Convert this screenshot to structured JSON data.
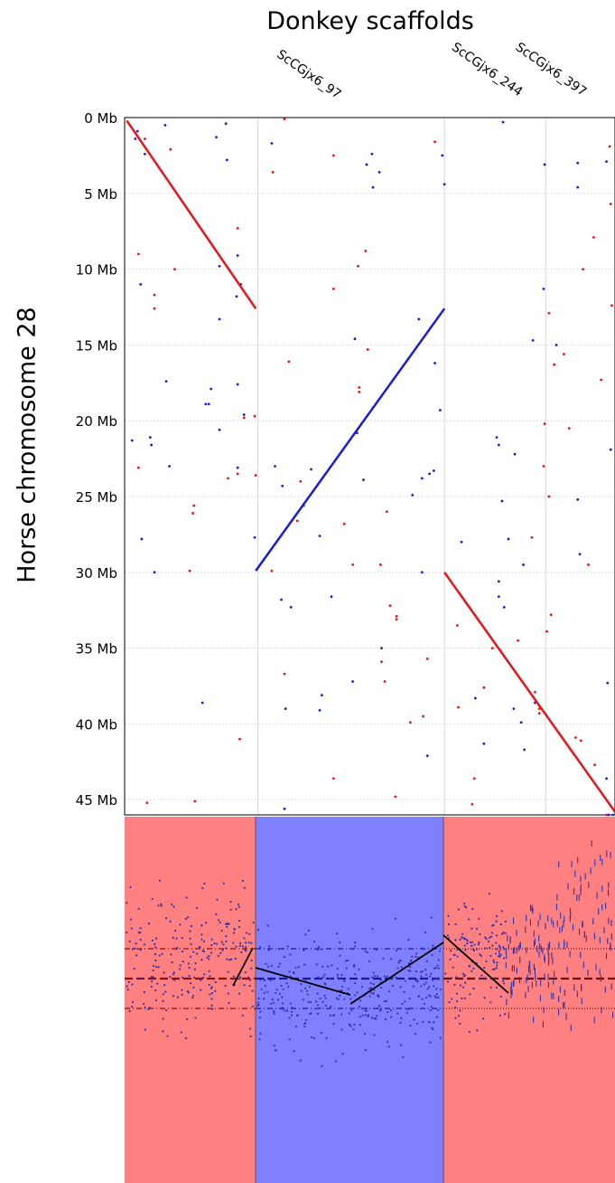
{
  "chart_data": [
    {
      "type": "scatter",
      "title": "Donkey scaffolds",
      "ylabel": "Horse chromosome 28",
      "y_unit": "Mb",
      "ylim": [
        0,
        46
      ],
      "y_ticks": [
        "0 Mb",
        "5 Mb",
        "10 Mb",
        "15 Mb",
        "20 Mb",
        "25 Mb",
        "30 Mb",
        "35 Mb",
        "40 Mb",
        "45 Mb"
      ],
      "y_tick_values": [
        0,
        5,
        10,
        15,
        20,
        25,
        30,
        35,
        40,
        45
      ],
      "grid": true,
      "x_unit": "Mb",
      "xlim": [
        0,
        46
      ],
      "scaffolds": [
        {
          "name": "ScCGjx6_97",
          "start": 0,
          "end": 12.5,
          "orientation": "forward",
          "color": "#e8141c"
        },
        {
          "name": "ScCGjx6_244",
          "start": 12.5,
          "end": 30,
          "orientation": "reverse",
          "color": "#1a1adb"
        },
        {
          "name": "ScCGjx6_397",
          "start": 30,
          "end": 46,
          "orientation": "forward",
          "color": "#e8141c"
        }
      ],
      "series": [
        {
          "values": [
            [
              0.2,
              0.2
            ],
            [
              12.3,
              12.6
            ]
          ],
          "color": "#e8141c"
        },
        {
          "values": [
            [
              12.3,
              29.9
            ],
            [
              30.0,
              12.6
            ]
          ],
          "color": "#1a1adb"
        },
        {
          "values": [
            [
              30.0,
              30.0
            ],
            [
              46.0,
              45.8
            ]
          ],
          "color": "#e8141c"
        }
      ],
      "scatter_points": {
        "red": [
          [
            1.9,
            1.4
          ],
          [
            4.3,
            2.1
          ],
          [
            13.9,
            3.6
          ],
          [
            15.0,
            0.1
          ],
          [
            19.6,
            2.5
          ],
          [
            29.1,
            1.6
          ],
          [
            39.8,
            12.9
          ],
          [
            40.3,
            16.3
          ],
          [
            41.2,
            15.6
          ],
          [
            39.4,
            20.2
          ],
          [
            41.7,
            20.5
          ],
          [
            44.7,
            17.3
          ],
          [
            39.3,
            23.0
          ],
          [
            39.8,
            25.0
          ],
          [
            38.2,
            27.7
          ],
          [
            43.5,
            29.5
          ],
          [
            45.5,
            1.9
          ],
          [
            45.6,
            5.7
          ],
          [
            44.0,
            7.9
          ],
          [
            43.0,
            10.0
          ],
          [
            45.7,
            12.4
          ],
          [
            1.3,
            9.0
          ],
          [
            4.7,
            10.0
          ],
          [
            10.6,
            7.3
          ],
          [
            2.8,
            11.7
          ],
          [
            2.8,
            12.6
          ],
          [
            19.6,
            11.3
          ],
          [
            21.9,
            9.8
          ],
          [
            22.6,
            8.8
          ],
          [
            15.4,
            16.1
          ],
          [
            22.8,
            15.3
          ],
          [
            22.0,
            17.8
          ],
          [
            22.0,
            18.1
          ],
          [
            11.2,
            19.8
          ],
          [
            12.2,
            19.7
          ],
          [
            1.3,
            23.1
          ],
          [
            9.7,
            23.8
          ],
          [
            10.6,
            23.5
          ],
          [
            12.3,
            23.6
          ],
          [
            16.5,
            24.0
          ],
          [
            16.8,
            25.6
          ],
          [
            6.4,
            26.1
          ],
          [
            6.5,
            25.6
          ],
          [
            16.2,
            26.6
          ],
          [
            20.6,
            26.8
          ],
          [
            24.6,
            26.0
          ],
          [
            21.4,
            29.5
          ],
          [
            24.0,
            29.5
          ],
          [
            6.1,
            29.9
          ],
          [
            13.8,
            29.9
          ],
          [
            24.9,
            32.2
          ],
          [
            25.5,
            32.9
          ],
          [
            25.5,
            33.1
          ],
          [
            31.2,
            33.5
          ],
          [
            34.5,
            35.0
          ],
          [
            36.9,
            34.5
          ],
          [
            40.0,
            32.8
          ],
          [
            39.6,
            33.9
          ],
          [
            24.1,
            35.9
          ],
          [
            28.4,
            35.7
          ],
          [
            33.7,
            37.6
          ],
          [
            38.5,
            37.9
          ],
          [
            38.9,
            39.3
          ],
          [
            38.9,
            39.0
          ],
          [
            24.4,
            37.2
          ],
          [
            15.0,
            36.7
          ],
          [
            26.8,
            39.9
          ],
          [
            28.0,
            39.5
          ],
          [
            31.3,
            38.9
          ],
          [
            10.8,
            41.0
          ],
          [
            19.6,
            43.6
          ],
          [
            25.4,
            44.8
          ],
          [
            32.8,
            43.6
          ],
          [
            32.6,
            45.3
          ],
          [
            2.1,
            45.2
          ],
          [
            6.6,
            45.1
          ],
          [
            42.8,
            41.1
          ],
          [
            44.1,
            42.7
          ],
          [
            42.3,
            40.9
          ],
          [
            45.2,
            46.0
          ]
        ],
        "blue": [
          [
            3.8,
            0.5
          ],
          [
            9.5,
            0.4
          ],
          [
            8.6,
            1.3
          ],
          [
            13.8,
            1.7
          ],
          [
            9.6,
            2.8
          ],
          [
            1.9,
            2.4
          ],
          [
            22.7,
            3.1
          ],
          [
            23.2,
            2.4
          ],
          [
            23.9,
            3.6
          ],
          [
            23.3,
            4.6
          ],
          [
            29.8,
            2.5
          ],
          [
            30.0,
            4.4
          ],
          [
            35.5,
            0.3
          ],
          [
            39.4,
            3.1
          ],
          [
            42.5,
            3.0
          ],
          [
            45.2,
            2.9
          ],
          [
            42.5,
            4.6
          ],
          [
            8.9,
            9.8
          ],
          [
            10.6,
            9.1
          ],
          [
            1.5,
            11.0
          ],
          [
            10.5,
            11.8
          ],
          [
            10.9,
            11.0
          ],
          [
            8.9,
            13.3
          ],
          [
            27.6,
            13.3
          ],
          [
            29.1,
            16.2
          ],
          [
            38.3,
            14.7
          ],
          [
            40.5,
            15.0
          ],
          [
            39.3,
            11.3
          ],
          [
            21.6,
            14.6
          ],
          [
            3.9,
            17.4
          ],
          [
            8.1,
            17.9
          ],
          [
            7.6,
            18.9
          ],
          [
            7.9,
            18.9
          ],
          [
            10.6,
            17.6
          ],
          [
            8.9,
            20.6
          ],
          [
            11.2,
            19.6
          ],
          [
            29.6,
            19.3
          ],
          [
            0.7,
            21.3
          ],
          [
            2.4,
            21.1
          ],
          [
            2.5,
            21.6
          ],
          [
            4.2,
            23.0
          ],
          [
            21.8,
            20.8
          ],
          [
            34.9,
            21.1
          ],
          [
            35.1,
            21.6
          ],
          [
            36.6,
            22.2
          ],
          [
            10.6,
            23.1
          ],
          [
            14.1,
            23.0
          ],
          [
            14.8,
            24.3
          ],
          [
            17.5,
            23.2
          ],
          [
            22.4,
            23.9
          ],
          [
            27.0,
            24.9
          ],
          [
            27.9,
            23.8
          ],
          [
            28.6,
            23.5
          ],
          [
            29.0,
            23.3
          ],
          [
            35.4,
            25.3
          ],
          [
            42.5,
            25.2
          ],
          [
            45.6,
            21.9
          ],
          [
            1.6,
            27.8
          ],
          [
            2.8,
            30.0
          ],
          [
            12.2,
            27.7
          ],
          [
            18.3,
            27.6
          ],
          [
            31.6,
            28.0
          ],
          [
            36.0,
            27.8
          ],
          [
            37.4,
            29.5
          ],
          [
            42.7,
            28.8
          ],
          [
            27.9,
            30.0
          ],
          [
            35.1,
            30.6
          ],
          [
            35.1,
            31.6
          ],
          [
            35.6,
            32.3
          ],
          [
            14.7,
            31.8
          ],
          [
            15.6,
            32.3
          ],
          [
            19.4,
            31.6
          ],
          [
            24.1,
            35.0
          ],
          [
            21.4,
            37.2
          ],
          [
            18.5,
            38.1
          ],
          [
            18.3,
            39.1
          ],
          [
            15.1,
            39.0
          ],
          [
            7.3,
            38.6
          ],
          [
            32.9,
            38.3
          ],
          [
            33.7,
            41.3
          ],
          [
            36.5,
            39.0
          ],
          [
            37.2,
            39.9
          ],
          [
            37.5,
            41.7
          ],
          [
            38.5,
            38.6
          ],
          [
            28.4,
            42.1
          ],
          [
            45.3,
            37.3
          ],
          [
            45.2,
            43.6
          ],
          [
            45.4,
            46.0
          ],
          [
            45.8,
            46.0
          ],
          [
            15.0,
            45.6
          ],
          [
            1.0,
            1.4
          ],
          [
            1.2,
            0.9
          ]
        ]
      }
    },
    {
      "type": "scatter",
      "regions": [
        {
          "name": "ScCGjx6_97",
          "color": "#ff8080"
        },
        {
          "name": "ScCGjx6_244",
          "color": "#8080ff"
        },
        {
          "name": "ScCGjx6_397",
          "color": "#ff8080"
        }
      ],
      "reference_lines": [
        "upper",
        "mean",
        "lower"
      ],
      "point_color": "#3333aa",
      "trend_color": "#000000"
    }
  ]
}
